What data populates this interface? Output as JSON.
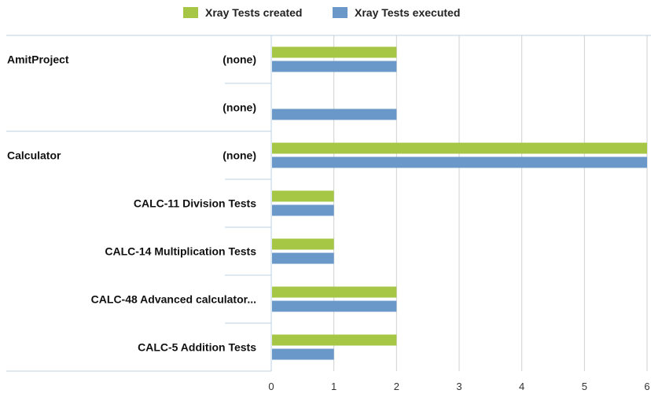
{
  "chart_data": {
    "type": "bar",
    "orientation": "horizontal",
    "legend_position": "top",
    "grid": true,
    "xlim": [
      0,
      6
    ],
    "x_ticks": [
      "0",
      "1",
      "2",
      "3",
      "4",
      "5",
      "6"
    ],
    "groups": [
      {
        "name": "AmitProject",
        "rows": [
          "(none)",
          "(none)"
        ]
      },
      {
        "name": "Calculator",
        "rows": [
          "(none)",
          "CALC-11 Division Tests",
          "CALC-14 Multiplication Tests",
          "CALC-48 Advanced calculator...",
          "CALC-5 Addition Tests"
        ]
      }
    ],
    "categories": [
      "(none)",
      "(none)",
      "(none)",
      "CALC-11 Division Tests",
      "CALC-14 Multiplication Tests",
      "CALC-48 Advanced calculator...",
      "CALC-5 Addition Tests"
    ],
    "series": [
      {
        "name": "Xray Tests created",
        "color": "#a5c745",
        "values": [
          2,
          0,
          6,
          1,
          1,
          2,
          2
        ]
      },
      {
        "name": "Xray Tests executed",
        "color": "#6a98c9",
        "values": [
          2,
          2,
          6,
          1,
          1,
          2,
          1
        ]
      }
    ]
  }
}
